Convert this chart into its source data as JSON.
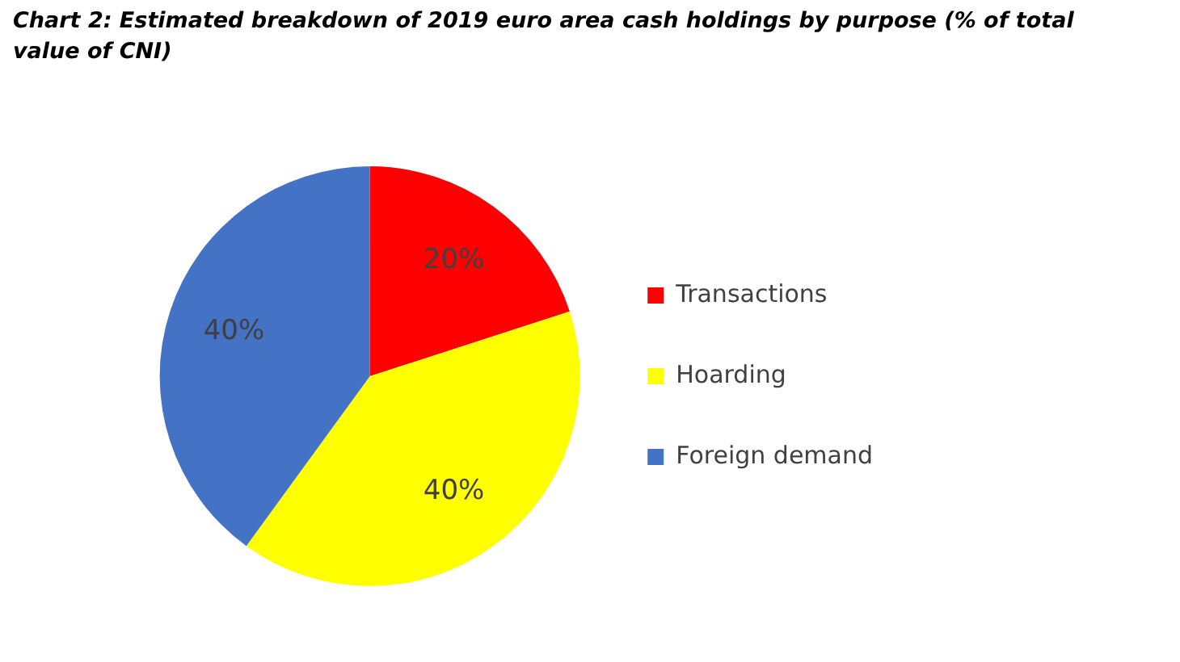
{
  "chart_data": {
    "type": "pie",
    "title": "Chart 2: Estimated breakdown of 2019 euro area cash holdings by purpose (% of total value of CNI)",
    "categories": [
      "Transactions",
      "Hoarding",
      "Foreign demand"
    ],
    "values": [
      20,
      40,
      40
    ],
    "colors": [
      "#ff0000",
      "#ffff00",
      "#4472c4"
    ],
    "value_labels": [
      "20%",
      "40%",
      "40%"
    ],
    "legend": "right"
  }
}
